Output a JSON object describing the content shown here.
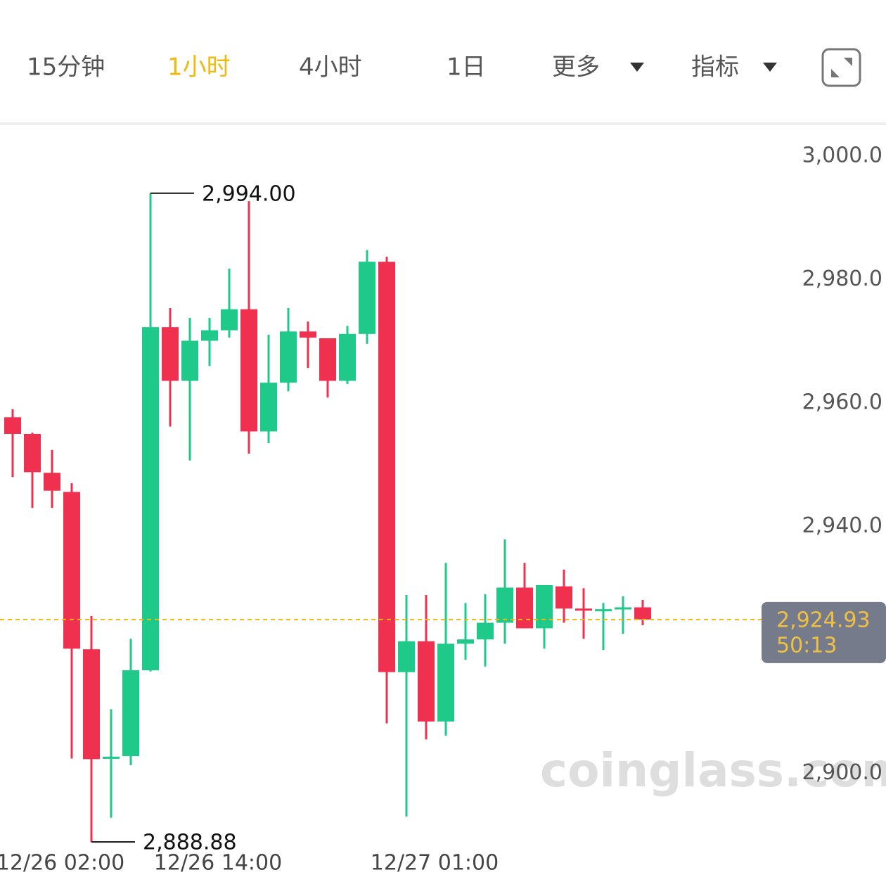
{
  "ui": {
    "tabs": [
      "15分钟",
      "1小时",
      "4小时",
      "1日",
      "更多",
      "指标"
    ],
    "watermark": "coinglass.com"
  },
  "chart_data": {
    "type": "candlestick",
    "categories": [
      null,
      null,
      "12/26 02:00",
      null,
      null,
      null,
      null,
      null,
      null,
      null,
      "12/26 14:00",
      null,
      null,
      null,
      null,
      null,
      null,
      null,
      null,
      null,
      null,
      "12/27 01:00",
      null,
      null,
      null,
      null,
      null,
      null,
      null,
      null,
      null,
      null,
      null
    ],
    "open": [
      2957.7,
      2955.0,
      2948.7,
      2945.6,
      2920.1,
      2902.4,
      2902.8,
      2916.7,
      2972.3,
      2963.6,
      2970.1,
      2971.8,
      2975.2,
      2955.4,
      2963.3,
      2971.6,
      2970.5,
      2963.6,
      2971.2,
      2982.9,
      2916.4,
      2921.4,
      2908.4,
      2921.0,
      2921.7,
      2924.4,
      2930.1,
      2923.5,
      2930.3,
      2926.7,
      2926.5,
      2926.6,
      2926.9
    ],
    "high": [
      2959.0,
      2955.2,
      2952.4,
      2947.0,
      2925.5,
      2910.4,
      2921.8,
      2994.0,
      2975.4,
      2973.8,
      2973.8,
      2981.8,
      2992.7,
      2971.1,
      2975.4,
      2973.2,
      2970.5,
      2972.5,
      2984.8,
      2983.7,
      2928.9,
      2928.9,
      2934.1,
      2927.6,
      2929.0,
      2937.9,
      2934.1,
      2930.5,
      2933.0,
      2930.0,
      2927.6,
      2928.7,
      2928.1
    ],
    "low": [
      2948.0,
      2943.0,
      2943.0,
      2902.4,
      2888.88,
      2892.8,
      2901.3,
      2916.5,
      2956.2,
      2950.7,
      2966.0,
      2970.6,
      2951.8,
      2953.5,
      2961.9,
      2965.7,
      2960.9,
      2963.1,
      2969.6,
      2908.1,
      2893.0,
      2905.5,
      2906.1,
      2918.4,
      2917.3,
      2921.0,
      2923.5,
      2920.2,
      2924.4,
      2921.8,
      2920.0,
      2922.6,
      2924.0
    ],
    "close": [
      2955.0,
      2948.8,
      2945.8,
      2920.2,
      2902.3,
      2902.7,
      2916.7,
      2972.3,
      2963.6,
      2970.1,
      2971.8,
      2975.2,
      2955.4,
      2963.3,
      2971.6,
      2970.6,
      2963.6,
      2971.2,
      2982.9,
      2916.4,
      2921.4,
      2908.4,
      2921.0,
      2921.7,
      2924.4,
      2930.1,
      2923.5,
      2930.5,
      2926.7,
      2926.5,
      2926.6,
      2926.9,
      2924.93
    ],
    "up_color": "#1ec98a",
    "down_color": "#f0304f",
    "ylim": [
      2883.2,
      3004.8
    ],
    "yticks": [
      {
        "value": 3000,
        "label": "3,000.0"
      },
      {
        "value": 2980,
        "label": "2,980.0"
      },
      {
        "value": 2960,
        "label": "2,960.0"
      },
      {
        "value": 2940,
        "label": "2,940.0"
      },
      {
        "value": 2900,
        "label": "2,900.0"
      }
    ],
    "annotations": [
      {
        "index": 7,
        "value": 2994.0,
        "label": "2,994.00"
      },
      {
        "index": 4,
        "value": 2888.88,
        "label": "2,888.88"
      }
    ],
    "last_price": {
      "value": 2924.93,
      "label": "2,924.93",
      "countdown": "50:13",
      "color": "#f0b90b"
    }
  }
}
